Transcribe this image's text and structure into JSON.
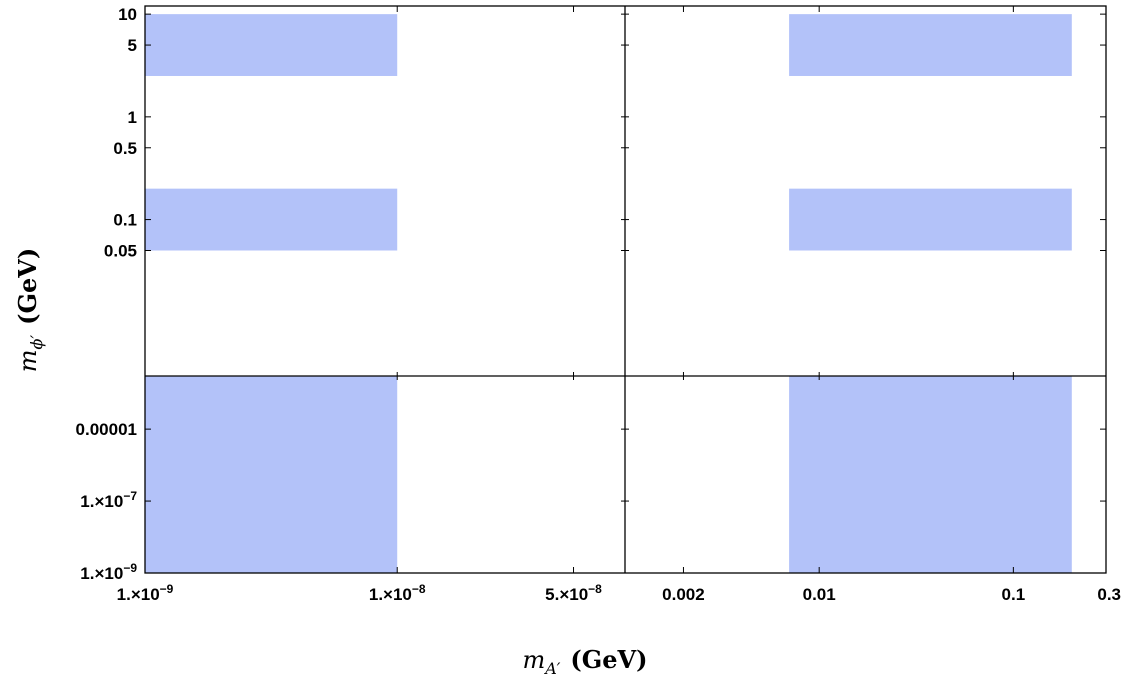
{
  "chart_data": {
    "type": "area",
    "title": "",
    "xlabel": {
      "symbol": "m",
      "subscript": "A′",
      "unit": "(GeV)"
    },
    "ylabel": {
      "symbol": "m",
      "subscript": "ϕ′",
      "unit": "(GeV)"
    },
    "x_scale": "log (broken axis)",
    "y_scale": "log (broken axis)",
    "x_segments": [
      {
        "range": [
          1e-09,
          8e-08
        ]
      },
      {
        "range": [
          0.001,
          0.3
        ]
      }
    ],
    "y_segments": [
      {
        "range": [
          1e-09,
          0.0003
        ]
      },
      {
        "range": [
          0.003,
          12
        ]
      }
    ],
    "x_ticks": [
      {
        "value": 1e-09,
        "label": "1.×10",
        "exp": "−9"
      },
      {
        "value": 1e-08,
        "label": "1.×10",
        "exp": "−8"
      },
      {
        "value": 5e-08,
        "label": "5.×10",
        "exp": "−8"
      },
      {
        "value": 0.002,
        "label": "0.002",
        "exp": ""
      },
      {
        "value": 0.01,
        "label": "0.01",
        "exp": ""
      },
      {
        "value": 0.1,
        "label": "0.1",
        "exp": ""
      },
      {
        "value": 0.3,
        "label": "0.3",
        "exp": ""
      }
    ],
    "y_ticks": [
      {
        "value": 10,
        "label": "10",
        "exp": ""
      },
      {
        "value": 5,
        "label": "5",
        "exp": ""
      },
      {
        "value": 1,
        "label": "1",
        "exp": ""
      },
      {
        "value": 0.5,
        "label": "0.5",
        "exp": ""
      },
      {
        "value": 0.1,
        "label": "0.1",
        "exp": ""
      },
      {
        "value": 0.05,
        "label": "0.05",
        "exp": ""
      },
      {
        "value": 1e-05,
        "label": "0.00001",
        "exp": ""
      },
      {
        "value": 1e-07,
        "label": "1.×10",
        "exp": "−7"
      },
      {
        "value": 1e-09,
        "label": "1.×10",
        "exp": "−9"
      }
    ],
    "regions": [
      {
        "x": [
          1e-09,
          1e-08
        ],
        "y": [
          2.5,
          10
        ]
      },
      {
        "x": [
          1e-09,
          1e-08
        ],
        "y": [
          0.05,
          0.2
        ]
      },
      {
        "x": [
          1e-09,
          1e-08
        ],
        "y": [
          1e-09,
          0.0003
        ]
      },
      {
        "x": [
          0.007,
          0.2
        ],
        "y": [
          2.5,
          10
        ]
      },
      {
        "x": [
          0.007,
          0.2
        ],
        "y": [
          0.05,
          0.2
        ]
      },
      {
        "x": [
          0.007,
          0.2
        ],
        "y": [
          1e-09,
          0.0003
        ]
      }
    ],
    "region_color": "#b3c2f9",
    "grid": false
  }
}
